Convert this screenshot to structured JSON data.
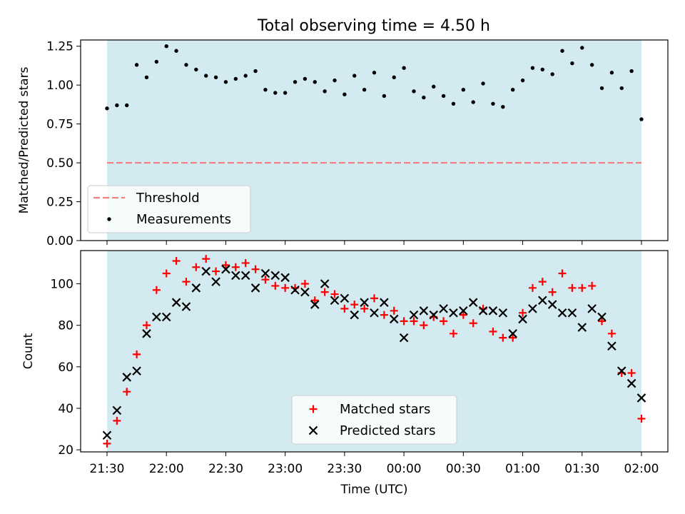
{
  "title": "Total observing time = 4.50 h",
  "xlabel": "Time (UTC)",
  "x_tick_labels": [
    "21:30",
    "22:00",
    "22:30",
    "23:00",
    "23:30",
    "00:00",
    "00:30",
    "01:00",
    "01:30",
    "02:00"
  ],
  "colors": {
    "band": "#d3eaf0",
    "threshold": "#f08080",
    "measurements": "#000000",
    "matched": "#ff0000",
    "predicted": "#000000"
  },
  "chart_data": [
    {
      "type": "scatter",
      "panel": "top",
      "ylabel": "Matched/Predicted stars",
      "ylim": [
        0,
        1.29
      ],
      "y_ticks": [
        "0.00",
        "0.25",
        "0.50",
        "0.75",
        "1.00",
        "1.25"
      ],
      "observing_window": [
        "21:30",
        "02:00"
      ],
      "threshold": 0.5,
      "legend_position": "lower-left",
      "legend": [
        {
          "label": "Threshold",
          "marker": "dashed-line"
        },
        {
          "label": "Measurements",
          "marker": "dot"
        }
      ],
      "series": [
        {
          "name": "Measurements",
          "x": [
            "21:30",
            "21:35",
            "21:40",
            "21:45",
            "21:50",
            "21:55",
            "22:00",
            "22:05",
            "22:10",
            "22:15",
            "22:20",
            "22:25",
            "22:30",
            "22:35",
            "22:40",
            "22:45",
            "22:50",
            "22:55",
            "23:00",
            "23:05",
            "23:10",
            "23:15",
            "23:20",
            "23:25",
            "23:30",
            "23:35",
            "23:40",
            "23:45",
            "23:50",
            "23:55",
            "00:00",
            "00:05",
            "00:10",
            "00:15",
            "00:20",
            "00:25",
            "00:30",
            "00:35",
            "00:40",
            "00:45",
            "00:50",
            "00:55",
            "01:00",
            "01:05",
            "01:10",
            "01:15",
            "01:20",
            "01:25",
            "01:30",
            "01:35",
            "01:40",
            "01:45",
            "01:50",
            "01:55",
            "02:00"
          ],
          "values": [
            0.85,
            0.87,
            0.87,
            1.13,
            1.05,
            1.15,
            1.25,
            1.22,
            1.13,
            1.1,
            1.06,
            1.05,
            1.02,
            1.04,
            1.06,
            1.09,
            0.97,
            0.95,
            0.95,
            1.02,
            1.04,
            1.02,
            0.96,
            1.03,
            0.94,
            1.06,
            0.97,
            1.08,
            0.93,
            1.05,
            1.11,
            0.96,
            0.92,
            0.99,
            0.93,
            0.88,
            0.97,
            0.89,
            1.01,
            0.88,
            0.86,
            0.97,
            1.03,
            1.11,
            1.1,
            1.07,
            1.22,
            1.14,
            1.24,
            1.13,
            0.98,
            1.08,
            0.98,
            1.09,
            0.78
          ]
        }
      ]
    },
    {
      "type": "scatter",
      "panel": "bottom",
      "ylabel": "Count",
      "ylim": [
        19,
        116
      ],
      "y_ticks": [
        "20",
        "40",
        "60",
        "80",
        "100"
      ],
      "legend_position": "lower-center",
      "legend": [
        {
          "label": "Matched stars",
          "marker": "plus"
        },
        {
          "label": "Predicted stars",
          "marker": "x"
        }
      ],
      "series": [
        {
          "name": "Matched stars",
          "x": [
            "21:30",
            "21:35",
            "21:40",
            "21:45",
            "21:50",
            "21:55",
            "22:00",
            "22:05",
            "22:10",
            "22:15",
            "22:20",
            "22:25",
            "22:30",
            "22:35",
            "22:40",
            "22:45",
            "22:50",
            "22:55",
            "23:00",
            "23:05",
            "23:10",
            "23:15",
            "23:20",
            "23:25",
            "23:30",
            "23:35",
            "23:40",
            "23:45",
            "23:50",
            "23:55",
            "00:00",
            "00:05",
            "00:10",
            "00:15",
            "00:20",
            "00:25",
            "00:30",
            "00:35",
            "00:40",
            "00:45",
            "00:50",
            "00:55",
            "01:00",
            "01:05",
            "01:10",
            "01:15",
            "01:20",
            "01:25",
            "01:30",
            "01:35",
            "01:40",
            "01:45",
            "01:50",
            "01:55",
            "02:00"
          ],
          "values": [
            23,
            34,
            48,
            66,
            80,
            97,
            105,
            111,
            101,
            108,
            112,
            106,
            109,
            108,
            110,
            107,
            102,
            99,
            98,
            98,
            100,
            92,
            96,
            95,
            88,
            90,
            88,
            93,
            85,
            87,
            82,
            82,
            80,
            84,
            82,
            76,
            85,
            81,
            88,
            77,
            74,
            74,
            86,
            98,
            101,
            96,
            105,
            98,
            98,
            99,
            82,
            76,
            57,
            57,
            35
          ]
        },
        {
          "name": "Predicted stars",
          "x": [
            "21:30",
            "21:35",
            "21:40",
            "21:45",
            "21:50",
            "21:55",
            "22:00",
            "22:05",
            "22:10",
            "22:15",
            "22:20",
            "22:25",
            "22:30",
            "22:35",
            "22:40",
            "22:45",
            "22:50",
            "22:55",
            "23:00",
            "23:05",
            "23:10",
            "23:15",
            "23:20",
            "23:25",
            "23:30",
            "23:35",
            "23:40",
            "23:45",
            "23:50",
            "23:55",
            "00:00",
            "00:05",
            "00:10",
            "00:15",
            "00:20",
            "00:25",
            "00:30",
            "00:35",
            "00:40",
            "00:45",
            "00:50",
            "00:55",
            "01:00",
            "01:05",
            "01:10",
            "01:15",
            "01:20",
            "01:25",
            "01:30",
            "01:35",
            "01:40",
            "01:45",
            "01:50",
            "01:55",
            "02:00"
          ],
          "values": [
            27,
            39,
            55,
            58,
            76,
            84,
            84,
            91,
            89,
            98,
            106,
            101,
            107,
            104,
            104,
            98,
            105,
            104,
            103,
            97,
            96,
            90,
            100,
            92,
            93,
            85,
            91,
            86,
            91,
            83,
            74,
            85,
            87,
            85,
            88,
            86,
            87,
            91,
            87,
            87,
            86,
            76,
            83,
            88,
            92,
            90,
            86,
            86,
            79,
            88,
            84,
            70,
            58,
            52,
            45
          ]
        }
      ]
    }
  ]
}
